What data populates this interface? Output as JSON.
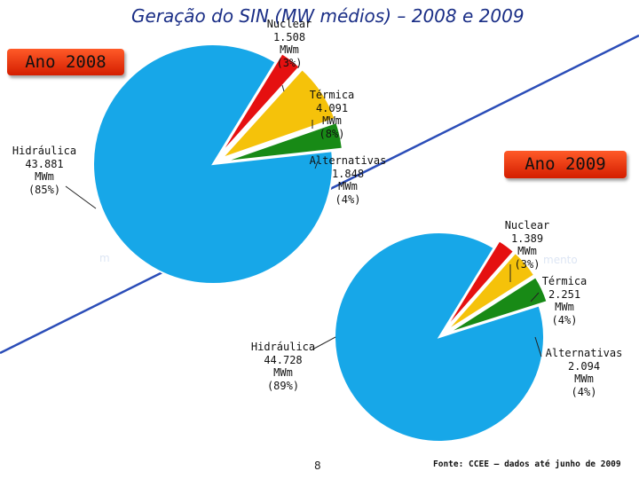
{
  "title": "Geração do SIN (MW médios) – 2008 e 2009",
  "page_number": "8",
  "source": "Fonte: CCEE – dados até junho de 2009",
  "ghost_text": {
    "left": "m",
    "right": "mento"
  },
  "colors": {
    "hidraulica": "#17a7e8",
    "nuclear": "#e51010",
    "termica": "#f5c20a",
    "alternativas": "#188a16",
    "title": "#1a2e86",
    "diagonal": "#2b4db8"
  },
  "chart_data": [
    {
      "type": "pie",
      "badge": "Ano 2008",
      "unit": "MWm",
      "slices": [
        {
          "key": "hidraulica",
          "name": "Hidráulica",
          "value": 43881,
          "value_label": "43.881",
          "percent": 85,
          "percent_label": "(85%)"
        },
        {
          "key": "nuclear",
          "name": "Nuclear",
          "value": 1508,
          "value_label": "1.508",
          "percent": 3,
          "percent_label": "(3%)"
        },
        {
          "key": "termica",
          "name": "Térmica",
          "value": 4091,
          "value_label": "4.091",
          "percent": 8,
          "percent_label": "(8%)"
        },
        {
          "key": "alternativas",
          "name": "Alternativas",
          "value": 1848,
          "value_label": "1.848",
          "percent": 4,
          "percent_label": "(4%)"
        }
      ]
    },
    {
      "type": "pie",
      "badge": "Ano 2009",
      "unit": "MWm",
      "slices": [
        {
          "key": "hidraulica",
          "name": "Hidráulica",
          "value": 44728,
          "value_label": "44.728",
          "percent": 89,
          "percent_label": "(89%)"
        },
        {
          "key": "nuclear",
          "name": "Nuclear",
          "value": 1389,
          "value_label": "1.389",
          "percent": 3,
          "percent_label": "(3%)"
        },
        {
          "key": "termica",
          "name": "Térmica",
          "value": 2251,
          "value_label": "2.251",
          "percent": 4,
          "percent_label": "(4%)"
        },
        {
          "key": "alternativas",
          "name": "Alternativas",
          "value": 2094,
          "value_label": "2.094",
          "percent": 4,
          "percent_label": "(4%)"
        }
      ]
    }
  ]
}
